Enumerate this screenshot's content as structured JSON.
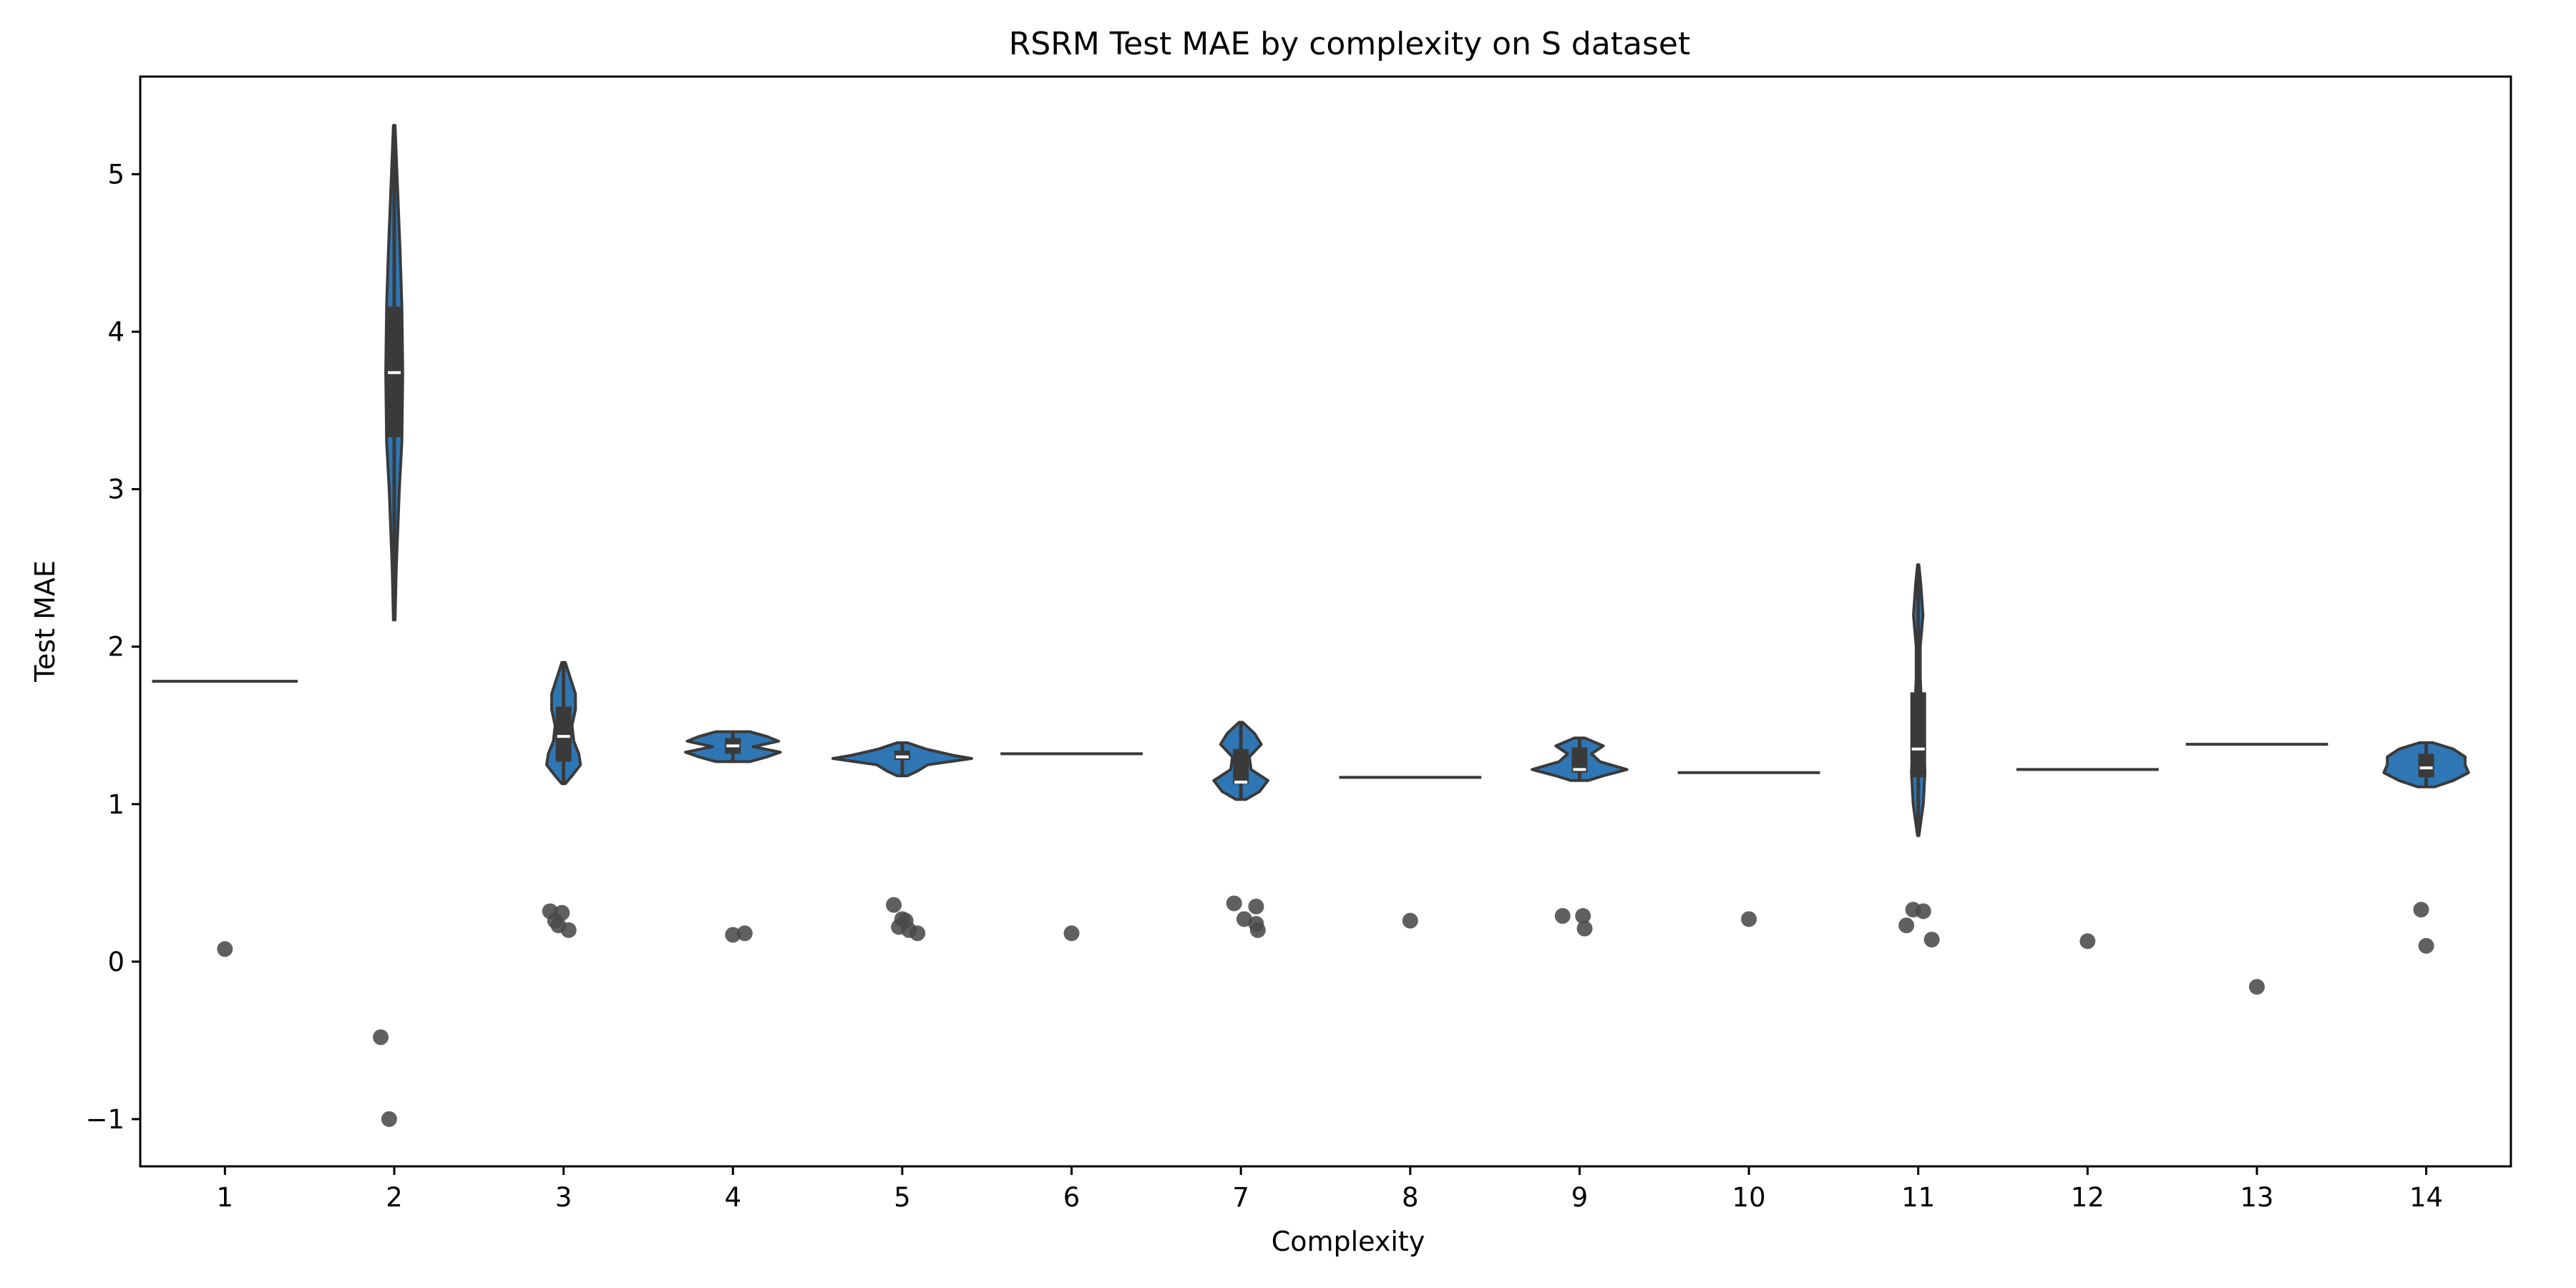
{
  "chart_data": {
    "type": "violin",
    "title": "RSRM Test MAE by complexity on S dataset",
    "xlabel": "Complexity",
    "ylabel": "Test MAE",
    "categories": [
      "1",
      "2",
      "3",
      "4",
      "5",
      "6",
      "7",
      "8",
      "9",
      "10",
      "11",
      "12",
      "13",
      "14"
    ],
    "yticks": [
      "−1",
      "0",
      "1",
      "2",
      "3",
      "4",
      "5"
    ],
    "ylim": [
      -1.3,
      5.62
    ],
    "grid": false,
    "colors": {
      "violin": "#2f77b4",
      "edge": "#3a3a3a",
      "points": "#4a4a4a",
      "median": "#ffffff"
    },
    "violins": [
      {
        "category": "1",
        "shape": "line",
        "value": 1.78,
        "halfwidth": 0.43
      },
      {
        "category": "2",
        "shape": "violin",
        "min": 2.17,
        "max": 5.31,
        "q1": 3.33,
        "median": 3.74,
        "q3": 4.16,
        "profile": [
          [
            2.17,
            0.005
          ],
          [
            2.5,
            0.012
          ],
          [
            3.0,
            0.03
          ],
          [
            3.3,
            0.045
          ],
          [
            3.74,
            0.05
          ],
          [
            4.16,
            0.045
          ],
          [
            4.5,
            0.035
          ],
          [
            4.9,
            0.02
          ],
          [
            5.31,
            0.005
          ]
        ]
      },
      {
        "category": "3",
        "shape": "violin",
        "min": 1.13,
        "max": 1.9,
        "q1": 1.27,
        "median": 1.43,
        "q3": 1.62,
        "profile": [
          [
            1.13,
            0.01
          ],
          [
            1.18,
            0.05
          ],
          [
            1.25,
            0.1
          ],
          [
            1.32,
            0.09
          ],
          [
            1.4,
            0.06
          ],
          [
            1.5,
            0.05
          ],
          [
            1.6,
            0.07
          ],
          [
            1.7,
            0.07
          ],
          [
            1.8,
            0.04
          ],
          [
            1.9,
            0.01
          ]
        ]
      },
      {
        "category": "4",
        "shape": "violin",
        "min": 1.27,
        "max": 1.46,
        "q1": 1.32,
        "median": 1.37,
        "q3": 1.42,
        "profile": [
          [
            1.27,
            0.1
          ],
          [
            1.3,
            0.2
          ],
          [
            1.33,
            0.28
          ],
          [
            1.365,
            0.12
          ],
          [
            1.4,
            0.27
          ],
          [
            1.43,
            0.2
          ],
          [
            1.46,
            0.1
          ]
        ]
      },
      {
        "category": "5",
        "shape": "violin",
        "min": 1.18,
        "max": 1.39,
        "q1": 1.28,
        "median": 1.3,
        "q3": 1.34,
        "profile": [
          [
            1.18,
            0.03
          ],
          [
            1.21,
            0.09
          ],
          [
            1.25,
            0.15
          ],
          [
            1.29,
            0.41
          ],
          [
            1.31,
            0.3
          ],
          [
            1.35,
            0.14
          ],
          [
            1.39,
            0.03
          ]
        ]
      },
      {
        "category": "6",
        "shape": "line",
        "value": 1.32,
        "halfwidth": 0.42
      },
      {
        "category": "7",
        "shape": "violin",
        "min": 1.03,
        "max": 1.52,
        "q1": 1.13,
        "median": 1.14,
        "q3": 1.35,
        "profile": [
          [
            1.03,
            0.03
          ],
          [
            1.08,
            0.11
          ],
          [
            1.15,
            0.16
          ],
          [
            1.22,
            0.06
          ],
          [
            1.3,
            0.05
          ],
          [
            1.38,
            0.12
          ],
          [
            1.45,
            0.08
          ],
          [
            1.52,
            0.01
          ]
        ]
      },
      {
        "category": "8",
        "shape": "line",
        "value": 1.17,
        "halfwidth": 0.42
      },
      {
        "category": "9",
        "shape": "violin",
        "min": 1.15,
        "max": 1.42,
        "q1": 1.2,
        "median": 1.22,
        "q3": 1.36,
        "profile": [
          [
            1.15,
            0.05
          ],
          [
            1.18,
            0.14
          ],
          [
            1.22,
            0.28
          ],
          [
            1.27,
            0.12
          ],
          [
            1.32,
            0.07
          ],
          [
            1.37,
            0.14
          ],
          [
            1.42,
            0.03
          ]
        ]
      },
      {
        "category": "10",
        "shape": "line",
        "value": 1.2,
        "halfwidth": 0.42
      },
      {
        "category": "11",
        "shape": "violin",
        "min": 0.8,
        "max": 2.52,
        "q1": 1.17,
        "median": 1.35,
        "q3": 1.71,
        "profile": [
          [
            0.8,
            0.004
          ],
          [
            1.0,
            0.03
          ],
          [
            1.2,
            0.04
          ],
          [
            1.4,
            0.03
          ],
          [
            1.6,
            0.02
          ],
          [
            1.8,
            0.012
          ],
          [
            2.0,
            0.012
          ],
          [
            2.2,
            0.028
          ],
          [
            2.4,
            0.015
          ],
          [
            2.52,
            0.004
          ]
        ]
      },
      {
        "category": "12",
        "shape": "line",
        "value": 1.22,
        "halfwidth": 0.42
      },
      {
        "category": "13",
        "shape": "line",
        "value": 1.38,
        "halfwidth": 0.42
      },
      {
        "category": "14",
        "shape": "violin",
        "min": 1.11,
        "max": 1.39,
        "q1": 1.17,
        "median": 1.23,
        "q3": 1.32,
        "profile": [
          [
            1.11,
            0.05
          ],
          [
            1.15,
            0.16
          ],
          [
            1.2,
            0.25
          ],
          [
            1.25,
            0.23
          ],
          [
            1.3,
            0.23
          ],
          [
            1.35,
            0.16
          ],
          [
            1.39,
            0.04
          ]
        ]
      }
    ],
    "points": [
      {
        "category": "1",
        "x": 1.0,
        "y": 0.08
      },
      {
        "category": "2",
        "x": 1.92,
        "y": -0.48
      },
      {
        "category": "2",
        "x": 1.97,
        "y": -1.0
      },
      {
        "category": "3",
        "x": 2.92,
        "y": 0.32
      },
      {
        "category": "3",
        "x": 2.95,
        "y": 0.26
      },
      {
        "category": "3",
        "x": 2.97,
        "y": 0.23
      },
      {
        "category": "3",
        "x": 2.99,
        "y": 0.31
      },
      {
        "category": "3",
        "x": 3.03,
        "y": 0.2
      },
      {
        "category": "4",
        "x": 4.0,
        "y": 0.17
      },
      {
        "category": "4",
        "x": 4.07,
        "y": 0.18
      },
      {
        "category": "5",
        "x": 4.95,
        "y": 0.36
      },
      {
        "category": "5",
        "x": 4.98,
        "y": 0.22
      },
      {
        "category": "5",
        "x": 5.0,
        "y": 0.27
      },
      {
        "category": "5",
        "x": 5.02,
        "y": 0.26
      },
      {
        "category": "5",
        "x": 5.04,
        "y": 0.2
      },
      {
        "category": "5",
        "x": 5.09,
        "y": 0.18
      },
      {
        "category": "6",
        "x": 6.0,
        "y": 0.18
      },
      {
        "category": "7",
        "x": 6.96,
        "y": 0.37
      },
      {
        "category": "7",
        "x": 7.02,
        "y": 0.27
      },
      {
        "category": "7",
        "x": 7.09,
        "y": 0.24
      },
      {
        "category": "7",
        "x": 7.09,
        "y": 0.35
      },
      {
        "category": "7",
        "x": 7.1,
        "y": 0.2
      },
      {
        "category": "8",
        "x": 8.0,
        "y": 0.26
      },
      {
        "category": "9",
        "x": 8.9,
        "y": 0.29
      },
      {
        "category": "9",
        "x": 9.02,
        "y": 0.29
      },
      {
        "category": "9",
        "x": 9.03,
        "y": 0.21
      },
      {
        "category": "10",
        "x": 10.0,
        "y": 0.27
      },
      {
        "category": "11",
        "x": 10.93,
        "y": 0.23
      },
      {
        "category": "11",
        "x": 10.97,
        "y": 0.33
      },
      {
        "category": "11",
        "x": 11.03,
        "y": 0.32
      },
      {
        "category": "11",
        "x": 11.08,
        "y": 0.14
      },
      {
        "category": "12",
        "x": 12.0,
        "y": 0.13
      },
      {
        "category": "13",
        "x": 13.0,
        "y": -0.16
      },
      {
        "category": "14",
        "x": 13.97,
        "y": 0.33
      },
      {
        "category": "14",
        "x": 14.0,
        "y": 0.1
      }
    ]
  }
}
